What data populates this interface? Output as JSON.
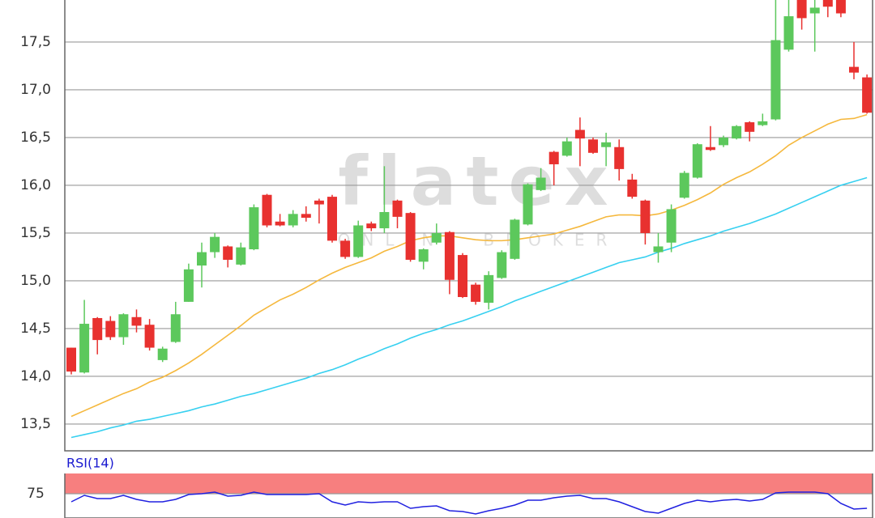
{
  "chart_data": [
    {
      "type": "candlestick",
      "watermark": {
        "text": "flatex",
        "subtext": "ONLINE BROKER"
      },
      "ylim": [
        13.22,
        17.94
      ],
      "yticks": [
        {
          "value": 13.5,
          "label": "13,5"
        },
        {
          "value": 14.0,
          "label": "14,0"
        },
        {
          "value": 14.5,
          "label": "14,5"
        },
        {
          "value": 15.0,
          "label": "15,0"
        },
        {
          "value": 15.5,
          "label": "15,5"
        },
        {
          "value": 16.0,
          "label": "16,0"
        },
        {
          "value": 16.5,
          "label": "16,5"
        },
        {
          "value": 17.0,
          "label": "17,0"
        },
        {
          "value": 17.5,
          "label": "17,5"
        }
      ],
      "grid": true,
      "up_color": "#5cc85c",
      "down_color": "#e8312f",
      "open": [
        14.3,
        14.04,
        14.61,
        14.58,
        14.41,
        14.62,
        14.54,
        14.17,
        14.36,
        14.78,
        15.16,
        15.3,
        15.36,
        15.17,
        15.33,
        15.9,
        15.62,
        15.58,
        15.7,
        15.84,
        15.88,
        15.42,
        15.25,
        15.6,
        15.55,
        15.84,
        15.71,
        15.2,
        15.4,
        15.51,
        15.27,
        14.96,
        14.77,
        15.03,
        15.23,
        15.59,
        15.95,
        16.35,
        16.31,
        16.58,
        16.48,
        16.4,
        16.4,
        16.06,
        15.84,
        15.3,
        15.4,
        15.87,
        16.08,
        16.4,
        16.42,
        16.49,
        16.66,
        16.63,
        16.69,
        17.42,
        17.95,
        17.8,
        17.95,
        17.94,
        17.24,
        17.13
      ],
      "high": [
        14.3,
        14.8,
        14.62,
        14.63,
        14.66,
        14.7,
        14.6,
        14.31,
        14.78,
        15.18,
        15.4,
        15.5,
        15.37,
        15.4,
        15.8,
        15.91,
        15.7,
        15.74,
        15.78,
        15.86,
        15.9,
        15.44,
        15.63,
        15.62,
        16.2,
        15.85,
        15.72,
        15.34,
        15.6,
        15.52,
        15.29,
        14.98,
        15.1,
        15.32,
        15.65,
        16.02,
        16.18,
        16.36,
        16.5,
        16.71,
        16.5,
        16.55,
        16.48,
        16.12,
        15.85,
        15.5,
        15.8,
        16.15,
        16.44,
        16.62,
        16.52,
        16.63,
        16.67,
        16.75,
        18.0,
        18.0,
        18.0,
        17.95,
        17.98,
        17.96,
        17.5,
        17.16
      ],
      "low": [
        14.02,
        14.03,
        14.23,
        14.38,
        14.33,
        14.46,
        14.27,
        14.15,
        14.35,
        14.78,
        14.93,
        15.24,
        15.14,
        15.16,
        15.32,
        15.56,
        15.57,
        15.56,
        15.62,
        15.6,
        15.4,
        15.23,
        15.24,
        15.52,
        15.5,
        15.55,
        15.2,
        15.12,
        15.38,
        14.86,
        14.82,
        14.75,
        14.7,
        15.02,
        15.22,
        15.58,
        15.94,
        16.0,
        16.3,
        16.2,
        16.33,
        16.2,
        16.05,
        15.86,
        15.38,
        15.19,
        15.3,
        15.86,
        16.07,
        16.36,
        16.4,
        16.48,
        16.46,
        16.62,
        16.68,
        17.4,
        17.63,
        17.4,
        17.76,
        17.76,
        17.11,
        16.75
      ],
      "close": [
        14.05,
        14.55,
        14.38,
        14.41,
        14.65,
        14.53,
        14.3,
        14.29,
        14.65,
        15.12,
        15.3,
        15.46,
        15.22,
        15.35,
        15.77,
        15.58,
        15.58,
        15.7,
        15.66,
        15.8,
        15.42,
        15.25,
        15.58,
        15.55,
        15.72,
        15.67,
        15.22,
        15.33,
        15.5,
        15.01,
        14.83,
        14.78,
        15.06,
        15.3,
        15.64,
        16.01,
        16.08,
        16.22,
        16.46,
        16.49,
        16.34,
        16.45,
        16.17,
        15.88,
        15.5,
        15.36,
        15.75,
        16.13,
        16.43,
        16.37,
        16.5,
        16.62,
        16.56,
        16.67,
        17.52,
        17.77,
        17.75,
        17.86,
        17.87,
        17.8,
        17.18,
        16.76
      ],
      "series": [
        {
          "color": "#f5b83d",
          "values": [
            13.58,
            13.64,
            13.7,
            13.76,
            13.82,
            13.87,
            13.94,
            13.99,
            14.06,
            14.14,
            14.23,
            14.33,
            14.43,
            14.53,
            14.64,
            14.72,
            14.8,
            14.86,
            14.93,
            15.01,
            15.08,
            15.14,
            15.19,
            15.24,
            15.31,
            15.36,
            15.42,
            15.45,
            15.47,
            15.47,
            15.45,
            15.43,
            15.42,
            15.42,
            15.43,
            15.45,
            15.47,
            15.49,
            15.53,
            15.57,
            15.62,
            15.67,
            15.69,
            15.69,
            15.68,
            15.7,
            15.74,
            15.79,
            15.85,
            15.92,
            16.01,
            16.08,
            16.14,
            16.22,
            16.31,
            16.42,
            16.5,
            16.57,
            16.64,
            16.69,
            16.7,
            16.74
          ]
        },
        {
          "color": "#37d0f0",
          "values": [
            13.36,
            13.39,
            13.42,
            13.46,
            13.49,
            13.53,
            13.55,
            13.58,
            13.61,
            13.64,
            13.68,
            13.71,
            13.75,
            13.79,
            13.82,
            13.86,
            13.9,
            13.94,
            13.98,
            14.03,
            14.07,
            14.12,
            14.18,
            14.23,
            14.29,
            14.34,
            14.4,
            14.45,
            14.49,
            14.54,
            14.58,
            14.63,
            14.68,
            14.73,
            14.79,
            14.84,
            14.89,
            14.94,
            14.99,
            15.04,
            15.09,
            15.14,
            15.19,
            15.22,
            15.25,
            15.3,
            15.34,
            15.39,
            15.43,
            15.47,
            15.52,
            15.56,
            15.6,
            15.65,
            15.7,
            15.76,
            15.82,
            15.88,
            15.94,
            16.0,
            16.04,
            16.08
          ]
        }
      ]
    },
    {
      "type": "line",
      "title": "RSI(14)",
      "ylim": [
        45,
        100
      ],
      "yticks": [
        75
      ],
      "band": [
        75,
        100
      ],
      "band_color": "#f77f7f",
      "series": [
        {
          "color": "#2020e0",
          "values": [
            65,
            73,
            69,
            69,
            73,
            68,
            65,
            65,
            68,
            74,
            75,
            77,
            72,
            73,
            77,
            74,
            74,
            74,
            74,
            75,
            65,
            61,
            65,
            64,
            65,
            65,
            57,
            59,
            60,
            54,
            53,
            50,
            54,
            57,
            61,
            67,
            67,
            70,
            72,
            73,
            69,
            69,
            65,
            59,
            53,
            51,
            57,
            63,
            67,
            65,
            67,
            68,
            66,
            68,
            76,
            77,
            77,
            77,
            75,
            63,
            56,
            57
          ]
        }
      ]
    }
  ]
}
